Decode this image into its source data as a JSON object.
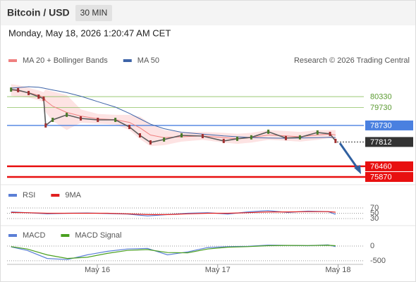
{
  "chart_data": [
    {
      "type": "line",
      "title": "Bitcoin / USD",
      "interval": "30 MIN",
      "timestamp": "Monday, May 18, 2026 1:20:47 AM CET",
      "source": "Research © 2026 Trading Central",
      "xlim": [
        6,
        77
      ],
      "ylim": [
        75440,
        81780
      ],
      "x": [
        6.8,
        8.2,
        10.3,
        12.3,
        13.3,
        13.7,
        15.1,
        17.9,
        20.7,
        24.1,
        27.6,
        30.4,
        32.5,
        34.6,
        37.3,
        40.8,
        45.0,
        49.2,
        51.9,
        54.7,
        58.1,
        61.6,
        64.4,
        67.9,
        70.4,
        71.5
      ],
      "price": {
        "color": "#5a5a5a",
        "values": [
          80720,
          80690,
          80530,
          80330,
          80220,
          78730,
          79040,
          79320,
          79120,
          79040,
          79040,
          78650,
          78180,
          77790,
          77950,
          78180,
          78140,
          77870,
          77990,
          78070,
          78380,
          78030,
          78070,
          78340,
          78260,
          77870
        ]
      },
      "series": [
        {
          "name": "MA 20 + Bollinger Bands",
          "color": "#f08080",
          "band_color": "#fde3e3",
          "values": [
            80700,
            80650,
            80550,
            80400,
            80300,
            80100,
            79800,
            79450,
            79250,
            79100,
            79050,
            78900,
            78600,
            78200,
            78050,
            78100,
            78150,
            78050,
            77990,
            78050,
            78200,
            78150,
            78100,
            78200,
            78250,
            78200
          ],
          "upper": [
            81000,
            80950,
            80800,
            80650,
            80550,
            80700,
            80600,
            80400,
            79600,
            79350,
            79300,
            79300,
            79200,
            78800,
            78450,
            78350,
            78350,
            78300,
            78250,
            78300,
            78450,
            78400,
            78350,
            78450,
            78450,
            78450
          ],
          "lower": [
            80400,
            80350,
            80300,
            80150,
            80050,
            79500,
            79000,
            78500,
            78900,
            78850,
            78800,
            78500,
            78000,
            77600,
            77650,
            77850,
            77950,
            77800,
            77730,
            77800,
            77950,
            77900,
            77850,
            77950,
            78050,
            77950
          ]
        },
        {
          "name": "MA 50",
          "color": "#3e64a8",
          "values": [
            80800,
            80830,
            80880,
            80850,
            80800,
            80780,
            80700,
            80550,
            80350,
            80050,
            79750,
            79400,
            79100,
            78800,
            78550,
            78350,
            78250,
            78150,
            78100,
            78060,
            78030,
            78020,
            78030,
            78050,
            78070,
            78060
          ]
        }
      ],
      "levels": [
        80330,
        79730,
        78730,
        77812,
        76460,
        75870
      ],
      "level_colors": [
        "#8cc060",
        "#8cc060",
        "#4a80e0",
        "#333333",
        "#e81010",
        "#e81010"
      ],
      "level_styles": [
        "thin",
        "thin",
        "box",
        "dotted",
        "thick",
        "thick"
      ]
    },
    {
      "type": "line",
      "xlim": [
        6,
        77
      ],
      "ylim": [
        9,
        91
      ],
      "yticks": [
        70,
        50,
        30
      ],
      "x": [
        6.8,
        10,
        14,
        18,
        22,
        26,
        30,
        34,
        38,
        42,
        46,
        50,
        54,
        58,
        62,
        66,
        70,
        71.5
      ],
      "series": [
        {
          "name": "RSI",
          "color": "#5b7fd6",
          "values": [
            55,
            52,
            48,
            50,
            51,
            49,
            47,
            40,
            45,
            50,
            52,
            47,
            55,
            60,
            53,
            58,
            56,
            46
          ]
        },
        {
          "name": "9MA",
          "color": "#e02020",
          "values": [
            53,
            52,
            50,
            50,
            50,
            50,
            48,
            45,
            45,
            48,
            50,
            50,
            52,
            55,
            55,
            56,
            56,
            54
          ]
        }
      ]
    },
    {
      "type": "line",
      "xlim": [
        6,
        77
      ],
      "ylim": [
        -550,
        214
      ],
      "yticks": [
        0,
        -500
      ],
      "xticks": [
        {
          "value": 24,
          "label": "May 16"
        },
        {
          "value": 48,
          "label": "May 17"
        },
        {
          "value": 72,
          "label": "May 18"
        }
      ],
      "x": [
        6.8,
        10,
        14,
        18,
        22,
        26,
        30,
        34,
        38,
        42,
        46,
        50,
        54,
        58,
        62,
        66,
        70,
        71.5
      ],
      "series": [
        {
          "name": "MACD",
          "color": "#5b7fd6",
          "values": [
            -30,
            -150,
            -420,
            -460,
            -300,
            -180,
            -100,
            -80,
            -300,
            -200,
            -50,
            -20,
            -10,
            30,
            20,
            10,
            40,
            -20
          ]
        },
        {
          "name": "MACD Signal",
          "color": "#4aa020",
          "values": [
            -20,
            -100,
            -300,
            -420,
            -380,
            -250,
            -150,
            -120,
            -220,
            -230,
            -100,
            -40,
            -20,
            10,
            20,
            15,
            25,
            10
          ]
        }
      ]
    }
  ]
}
